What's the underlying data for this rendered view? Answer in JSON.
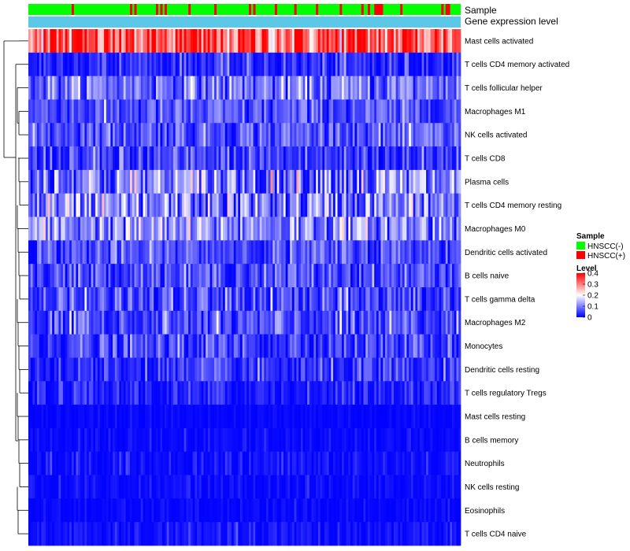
{
  "chart_data": {
    "type": "heatmap",
    "annotations": {
      "sample_label": "Sample",
      "level_label": "Gene expression level"
    },
    "rows": [
      {
        "name": "Mast cells activated",
        "mean": 0.33,
        "sd": 0.08
      },
      {
        "name": "T cells CD4 memory activated",
        "mean": 0.03,
        "sd": 0.04
      },
      {
        "name": "T cells follicular helper",
        "mean": 0.09,
        "sd": 0.05
      },
      {
        "name": "Macrophages M1",
        "mean": 0.06,
        "sd": 0.04
      },
      {
        "name": "NK cells activated",
        "mean": 0.07,
        "sd": 0.04
      },
      {
        "name": "T cells CD8",
        "mean": 0.04,
        "sd": 0.05
      },
      {
        "name": "Plasma cells",
        "mean": 0.1,
        "sd": 0.08
      },
      {
        "name": "T cells CD4 memory resting",
        "mean": 0.09,
        "sd": 0.07
      },
      {
        "name": "Macrophages M0",
        "mean": 0.11,
        "sd": 0.06
      },
      {
        "name": "Dendritic cells activated",
        "mean": 0.06,
        "sd": 0.04
      },
      {
        "name": "B cells naive",
        "mean": 0.06,
        "sd": 0.04
      },
      {
        "name": "T cells gamma delta",
        "mean": 0.05,
        "sd": 0.05
      },
      {
        "name": "Macrophages M2",
        "mean": 0.05,
        "sd": 0.05
      },
      {
        "name": "Monocytes",
        "mean": 0.05,
        "sd": 0.04
      },
      {
        "name": "Dendritic cells resting",
        "mean": 0.03,
        "sd": 0.04
      },
      {
        "name": "T cells regulatory  Tregs",
        "mean": 0.02,
        "sd": 0.03
      },
      {
        "name": "Mast cells resting",
        "mean": 0.003,
        "sd": 0.01
      },
      {
        "name": "B cells memory",
        "mean": 0.005,
        "sd": 0.015
      },
      {
        "name": "Neutrophils",
        "mean": 0.01,
        "sd": 0.02
      },
      {
        "name": "NK cells resting",
        "mean": 0.005,
        "sd": 0.015
      },
      {
        "name": "Eosinophils",
        "mean": 0.003,
        "sd": 0.01
      },
      {
        "name": "T cells CD4 naive",
        "mean": 0.01,
        "sd": 0.02
      }
    ],
    "n_samples": 200,
    "sample_group_fraction_positive": 0.14,
    "color_scale": {
      "min": 0,
      "max": 0.4,
      "low_color": "#0000ff",
      "mid_color": "#ffffff",
      "high_color": "#ff0000",
      "midpoint": 0.2
    },
    "legend": {
      "placement": "right",
      "sample_title": "Sample",
      "sample_entries": [
        {
          "label": "HNSCC(-)",
          "color": "#00ff00"
        },
        {
          "label": "HNSCC(+)",
          "color": "#ff0000"
        }
      ],
      "level_title": "Level",
      "level_ticks": [
        "0.4",
        "0.3",
        "0.2",
        "0.1",
        "0"
      ],
      "level_tick_values": [
        0.4,
        0.3,
        0.2,
        0.1,
        0
      ]
    },
    "level_bar_color": "#5bc8e8"
  }
}
